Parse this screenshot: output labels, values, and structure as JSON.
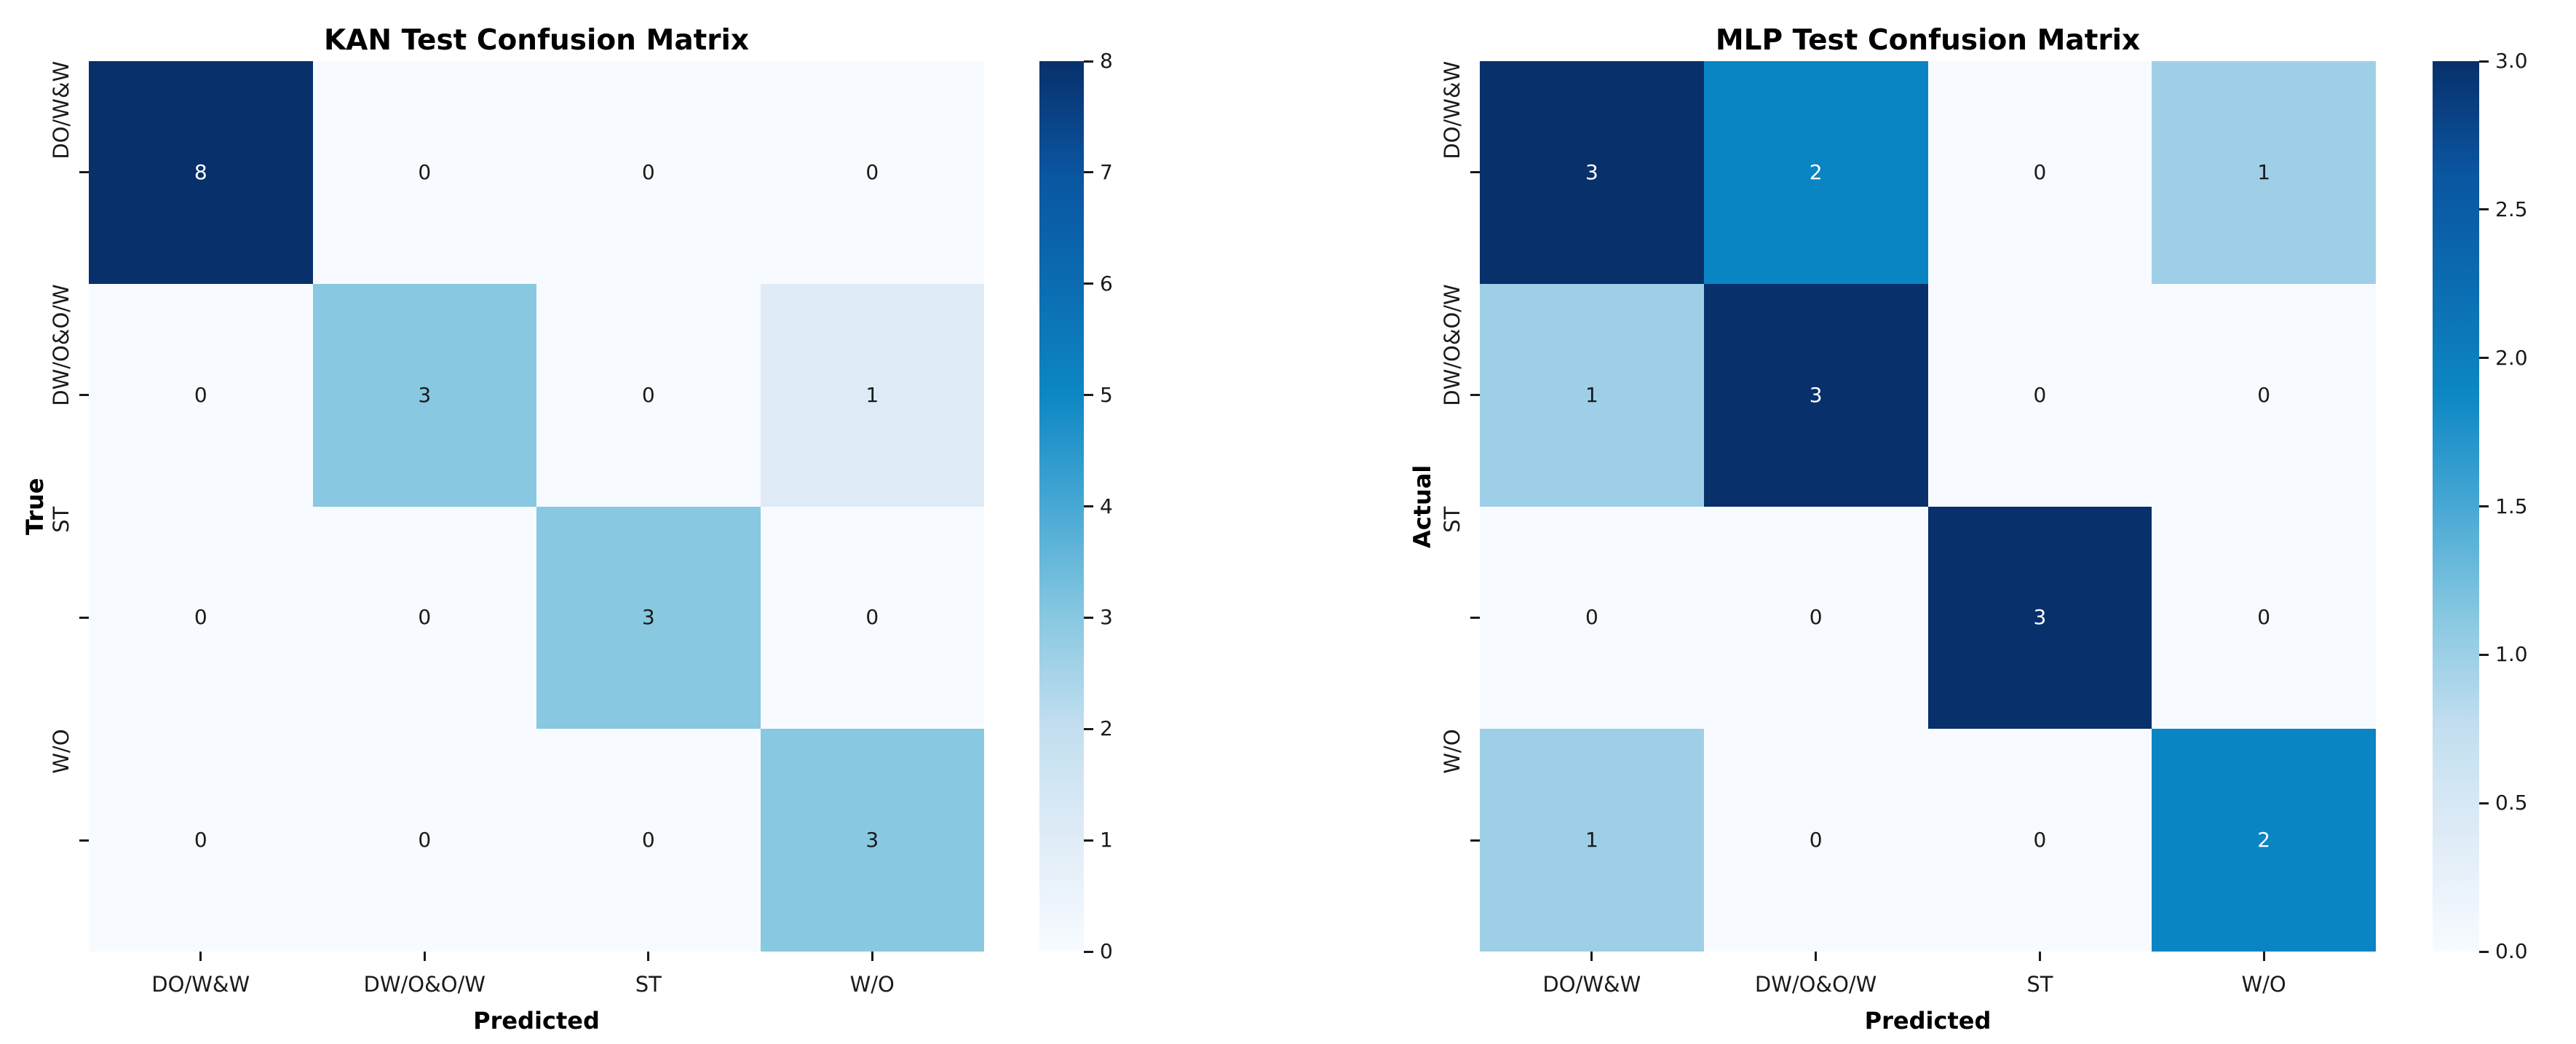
{
  "figure": {
    "background": "#ffffff",
    "text_color": "#000000",
    "tick_color": "#1a1a1a"
  },
  "colormap": {
    "name": "Blues",
    "stops": [
      "#f7fbff",
      "#e0ecf7",
      "#c3dff0",
      "#88c8e1",
      "#47a8d4",
      "#0d87c4",
      "#0b6cb2",
      "#0a55a0",
      "#08306b"
    ]
  },
  "chart_data": [
    {
      "type": "heatmap",
      "title": "KAN Test Confusion Matrix",
      "xlabel": "Predicted",
      "ylabel": "True",
      "x_categories": [
        "DO/W&W",
        "DW/O&O/W",
        "ST",
        "W/O"
      ],
      "y_categories": [
        "DO/W&W",
        "DW/O&O/W",
        "ST",
        "W/O"
      ],
      "values": [
        [
          8,
          0,
          0,
          0
        ],
        [
          0,
          3,
          0,
          1
        ],
        [
          0,
          0,
          3,
          0
        ],
        [
          0,
          0,
          0,
          3
        ]
      ],
      "vmin": 0,
      "vmax": 8,
      "grid": false,
      "legend_position": "right-colorbar",
      "colorbar_tick_labels": [
        "0",
        "1",
        "2",
        "3",
        "4",
        "5",
        "6",
        "7",
        "8"
      ],
      "colorbar_tick_values": [
        0,
        1,
        2,
        3,
        4,
        5,
        6,
        7,
        8
      ],
      "cell_colors": [
        [
          "#08306b",
          "#f7fbff",
          "#f7fbff",
          "#f7fbff"
        ],
        [
          "#f7fbff",
          "#88c8e1",
          "#f7fbff",
          "#deebf7"
        ],
        [
          "#f7fbff",
          "#f7fbff",
          "#88c8e1",
          "#f7fbff"
        ],
        [
          "#f7fbff",
          "#f7fbff",
          "#f7fbff",
          "#88c8e1"
        ]
      ],
      "cell_text_colors": [
        [
          "#ffffff",
          "#1a1a1a",
          "#1a1a1a",
          "#1a1a1a"
        ],
        [
          "#1a1a1a",
          "#1a1a1a",
          "#1a1a1a",
          "#1a1a1a"
        ],
        [
          "#1a1a1a",
          "#1a1a1a",
          "#1a1a1a",
          "#1a1a1a"
        ],
        [
          "#1a1a1a",
          "#1a1a1a",
          "#1a1a1a",
          "#1a1a1a"
        ]
      ]
    },
    {
      "type": "heatmap",
      "title": "MLP Test Confusion Matrix",
      "xlabel": "Predicted",
      "ylabel": "Actual",
      "x_categories": [
        "DO/W&W",
        "DW/O&O/W",
        "ST",
        "W/O"
      ],
      "y_categories": [
        "DO/W&W",
        "DW/O&O/W",
        "ST",
        "W/O"
      ],
      "values": [
        [
          3,
          2,
          0,
          1
        ],
        [
          1,
          3,
          0,
          0
        ],
        [
          0,
          0,
          3,
          0
        ],
        [
          1,
          0,
          0,
          2
        ]
      ],
      "vmin": 0,
      "vmax": 3,
      "grid": false,
      "legend_position": "right-colorbar",
      "colorbar_tick_labels": [
        "0.0",
        "0.5",
        "1.0",
        "1.5",
        "2.0",
        "2.5",
        "3.0"
      ],
      "colorbar_tick_values": [
        0,
        0.5,
        1,
        1.5,
        2,
        2.5,
        3
      ],
      "cell_colors": [
        [
          "#08306b",
          "#0a85c3",
          "#f7fbff",
          "#9ecfe7"
        ],
        [
          "#9ecfe7",
          "#08306b",
          "#f7fbff",
          "#f7fbff"
        ],
        [
          "#f7fbff",
          "#f7fbff",
          "#08306b",
          "#f7fbff"
        ],
        [
          "#9ecfe7",
          "#f7fbff",
          "#f7fbff",
          "#0a85c3"
        ]
      ],
      "cell_text_colors": [
        [
          "#ffffff",
          "#ffffff",
          "#1a1a1a",
          "#1a1a1a"
        ],
        [
          "#1a1a1a",
          "#ffffff",
          "#1a1a1a",
          "#1a1a1a"
        ],
        [
          "#1a1a1a",
          "#1a1a1a",
          "#ffffff",
          "#1a1a1a"
        ],
        [
          "#1a1a1a",
          "#1a1a1a",
          "#1a1a1a",
          "#ffffff"
        ]
      ]
    }
  ]
}
